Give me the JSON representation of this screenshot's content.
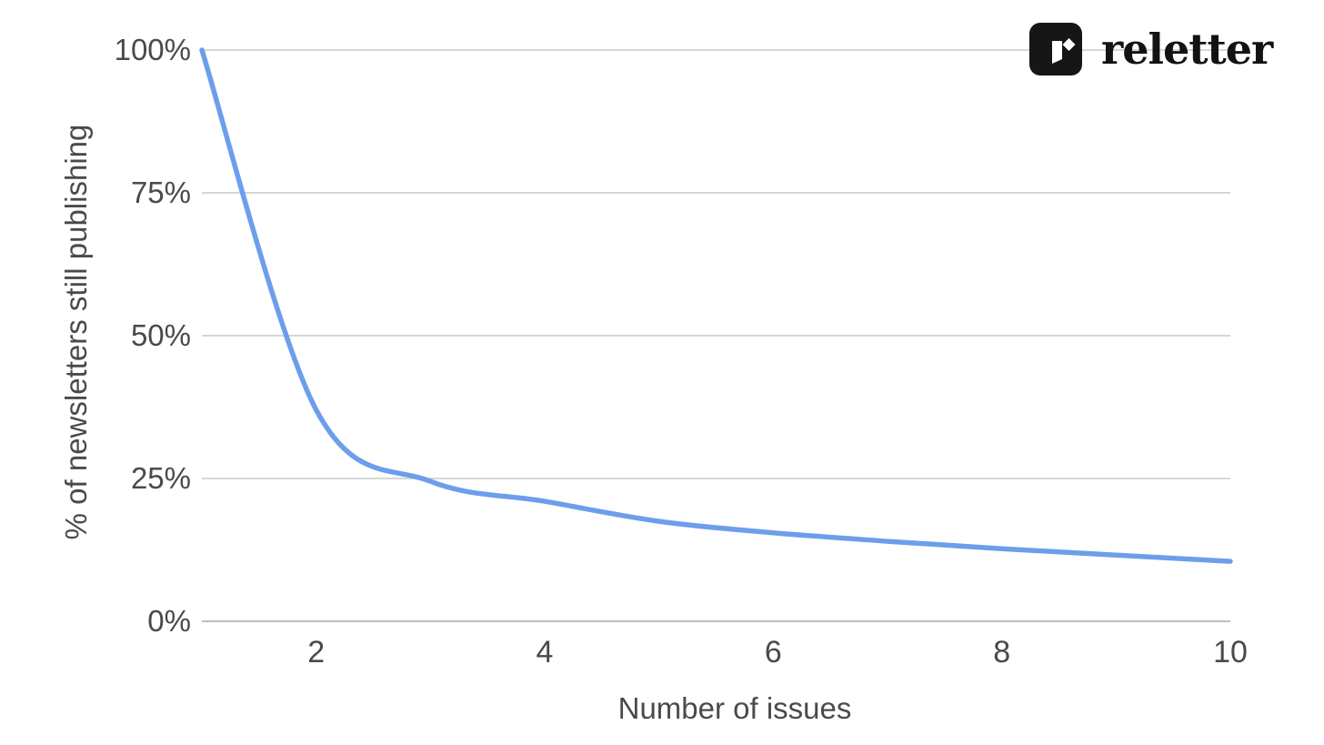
{
  "brand": {
    "name": "reletter",
    "logo_icon": "reletter-logo-icon",
    "logo_description": "black rounded square containing a white vertical banner with slanted bottom and a white diamond at its upper right"
  },
  "colors": {
    "background": "#ffffff",
    "line": "#6d9eeb",
    "gridline": "#d6d6d6",
    "axis_line": "#bdbdbd",
    "tick_text": "#4a4a4a",
    "axis_title_text": "#4a4a4a",
    "logo_background": "#161616",
    "logo_glyph": "#ffffff",
    "wordmark_text": "#131313"
  },
  "chart_data": {
    "type": "line",
    "title": "",
    "xlabel": "Number of issues",
    "ylabel": "% of newsletters still publishing",
    "x": [
      1,
      2,
      3,
      4,
      5,
      6,
      7,
      8,
      9,
      10
    ],
    "series": [
      {
        "name": "% of newsletters still publishing",
        "values": [
          100,
          37,
          24.5,
          21,
          17.5,
          15.5,
          14,
          12.7,
          11.6,
          10.5
        ]
      }
    ],
    "xlim": [
      1,
      10
    ],
    "ylim": [
      0,
      100
    ],
    "x_ticks": [
      2,
      4,
      6,
      8,
      10
    ],
    "x_tick_labels": [
      "2",
      "4",
      "6",
      "8",
      "10"
    ],
    "y_ticks": [
      100,
      75,
      50,
      25,
      0
    ],
    "y_tick_labels": [
      "100%",
      "75%",
      "50%",
      "25%",
      "0%"
    ],
    "grid": "horizontal gridlines every 25%",
    "legend": "none",
    "smooth": true,
    "line_color": "#6d9eeb",
    "line_width": 5.5
  }
}
